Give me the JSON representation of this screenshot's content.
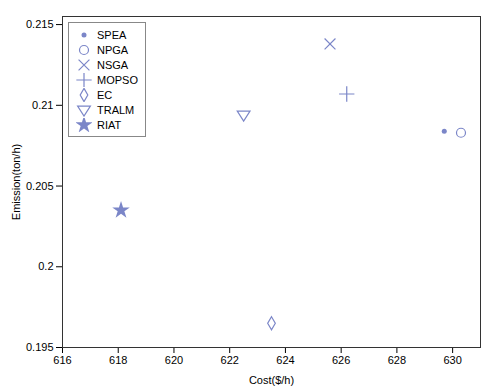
{
  "chart_data": {
    "type": "scatter",
    "xlabel": "Cost($/h)",
    "ylabel": "Emission(ton/h)",
    "color": "#7b86c8",
    "series": [
      {
        "name": "SPEA",
        "marker": "point",
        "x": [
          629.7
        ],
        "values": [
          0.2084
        ]
      },
      {
        "name": "NPGA",
        "marker": "circle-open",
        "x": [
          630.3
        ],
        "values": [
          0.2083
        ]
      },
      {
        "name": "NSGA",
        "marker": "x",
        "x": [
          625.6
        ],
        "values": [
          0.2138
        ]
      },
      {
        "name": "MOPSO",
        "marker": "plus",
        "x": [
          626.2
        ],
        "values": [
          0.2107
        ]
      },
      {
        "name": "EC",
        "marker": "diamond-open",
        "x": [
          623.5
        ],
        "values": [
          0.1965
        ]
      },
      {
        "name": "TRALM",
        "marker": "triangle-down-open",
        "x": [
          622.5
        ],
        "values": [
          0.2094
        ]
      },
      {
        "name": "RIAT",
        "marker": "star",
        "x": [
          618.1
        ],
        "values": [
          0.2035
        ]
      }
    ],
    "xlim": [
      616,
      631
    ],
    "ylim": [
      0.195,
      0.2155
    ],
    "xticks": [
      616,
      618,
      620,
      622,
      624,
      626,
      628,
      630
    ],
    "yticks": [
      0.195,
      0.2,
      0.205,
      0.21,
      0.215
    ],
    "grid": false,
    "legend": "upper left"
  }
}
